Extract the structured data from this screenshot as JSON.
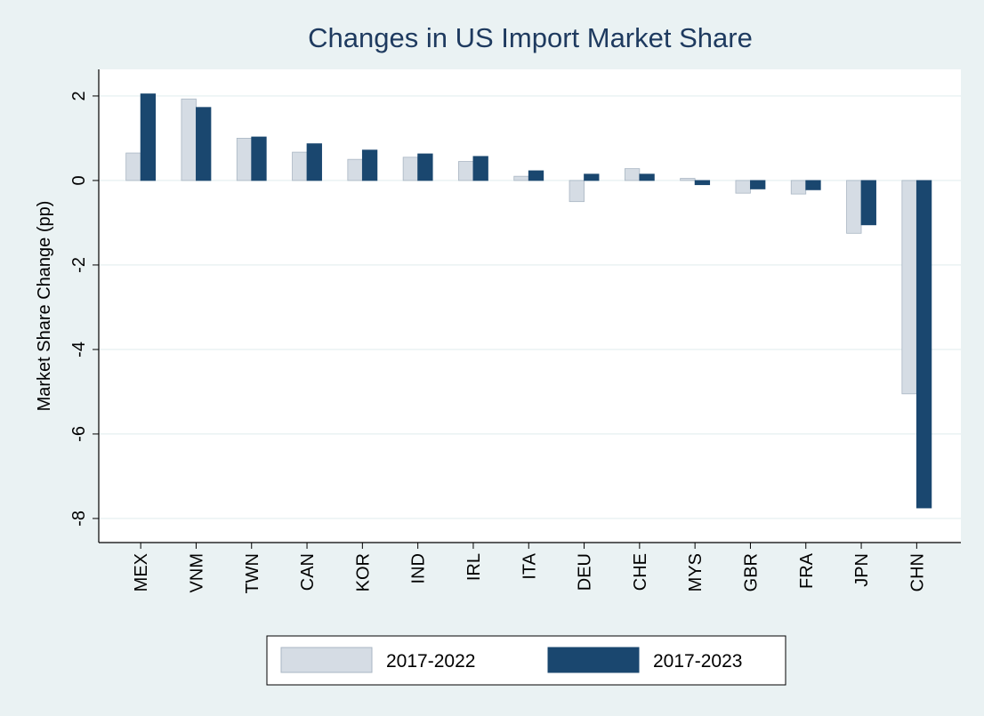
{
  "chart_data": {
    "type": "bar",
    "title": "Changes in US Import Market Share",
    "y_label": "Market Share Change (pp)",
    "categories": [
      "MEX",
      "VNM",
      "TWN",
      "CAN",
      "KOR",
      "IND",
      "IRL",
      "ITA",
      "DEU",
      "CHE",
      "MYS",
      "GBR",
      "FRA",
      "JPN",
      "CHN"
    ],
    "series": [
      {
        "name": "2017-2022",
        "color": "#d5dce4",
        "values": [
          0.65,
          1.93,
          1.0,
          0.67,
          0.5,
          0.55,
          0.45,
          0.1,
          -0.5,
          0.28,
          0.05,
          -0.3,
          -0.32,
          -1.25,
          -5.05
        ]
      },
      {
        "name": "2017-2023",
        "color": "#1a476f",
        "values": [
          2.05,
          1.73,
          1.03,
          0.87,
          0.72,
          0.63,
          0.57,
          0.23,
          0.15,
          0.15,
          -0.1,
          -0.2,
          -0.22,
          -1.05,
          -7.75
        ]
      }
    ],
    "ylim": [
      -8.57,
      2.63
    ],
    "yticks": [
      -8,
      -6,
      -4,
      -2,
      0,
      2
    ],
    "grid": true,
    "legend": "bottom"
  }
}
